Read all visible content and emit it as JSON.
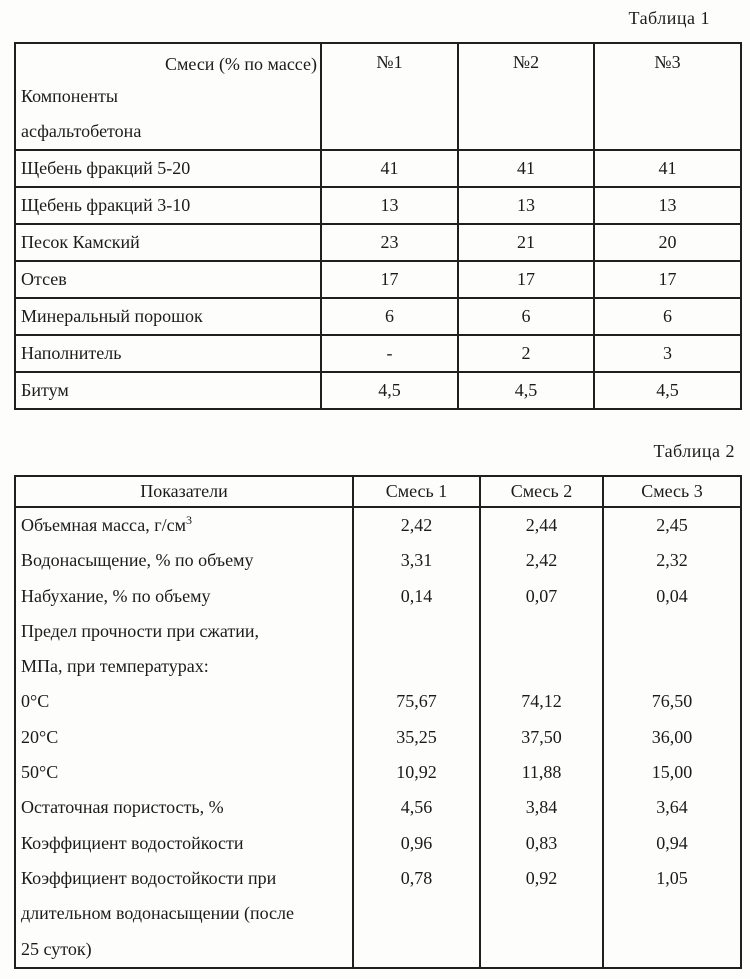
{
  "page": {
    "background_color": "#fdfdfc",
    "text_color": "#1b1b1b",
    "border_color": "#1f1f1f"
  },
  "table1": {
    "caption": "Таблица 1",
    "corner": {
      "top_right": "Смеси (% по массе)",
      "lines": [
        "Компоненты",
        "асфальтобетона"
      ]
    },
    "columns": [
      "№1",
      "№2",
      "№3"
    ],
    "rows": [
      {
        "label": "Щебень фракций 5-20",
        "values": [
          "41",
          "41",
          "41"
        ]
      },
      {
        "label": "Щебень фракций 3-10",
        "values": [
          "13",
          "13",
          "13"
        ]
      },
      {
        "label": "Песок Камский",
        "values": [
          "23",
          "21",
          "20"
        ]
      },
      {
        "label": "Отсев",
        "values": [
          "17",
          "17",
          "17"
        ]
      },
      {
        "label": "Минеральный порошок",
        "values": [
          "6",
          "6",
          "6"
        ]
      },
      {
        "label": "Наполнитель",
        "values": [
          "-",
          "2",
          "3"
        ]
      },
      {
        "label": "Битум",
        "values": [
          "4,5",
          "4,5",
          "4,5"
        ]
      }
    ]
  },
  "table2": {
    "caption": "Таблица 2",
    "columns": [
      "Показатели",
      "Смесь 1",
      "Смесь 2",
      "Смесь 3"
    ],
    "rows": [
      {
        "label": "Объемная масса, г/см",
        "sup": "3",
        "values": [
          "2,42",
          "2,44",
          "2,45"
        ]
      },
      {
        "label": "Водонасыщение, % по объему",
        "values": [
          "3,31",
          "2,42",
          "2,32"
        ]
      },
      {
        "label": "Набухание, % по объему",
        "values": [
          "0,14",
          "0,07",
          "0,04"
        ]
      },
      {
        "label": "Предел прочности при сжатии,",
        "values": [
          "",
          "",
          ""
        ]
      },
      {
        "label": "МПа, при температурах:",
        "values": [
          "",
          "",
          ""
        ]
      },
      {
        "label": "0°С",
        "values": [
          "75,67",
          "74,12",
          "76,50"
        ]
      },
      {
        "label": "20°С",
        "values": [
          "35,25",
          "37,50",
          "36,00"
        ]
      },
      {
        "label": "50°С",
        "values": [
          "10,92",
          "11,88",
          "15,00"
        ]
      },
      {
        "label": "Остаточная пористость, %",
        "values": [
          "4,56",
          "3,84",
          "3,64"
        ]
      },
      {
        "label": "Коэффициент водостойкости",
        "values": [
          "0,96",
          "0,83",
          "0,94"
        ]
      },
      {
        "label": "Коэффициент водостойкости при",
        "values": [
          "0,78",
          "0,92",
          "1,05"
        ]
      },
      {
        "label": "длительном водонасыщении (после",
        "values": [
          "",
          "",
          ""
        ]
      },
      {
        "label": "25 суток)",
        "values": [
          "",
          "",
          ""
        ]
      }
    ]
  }
}
